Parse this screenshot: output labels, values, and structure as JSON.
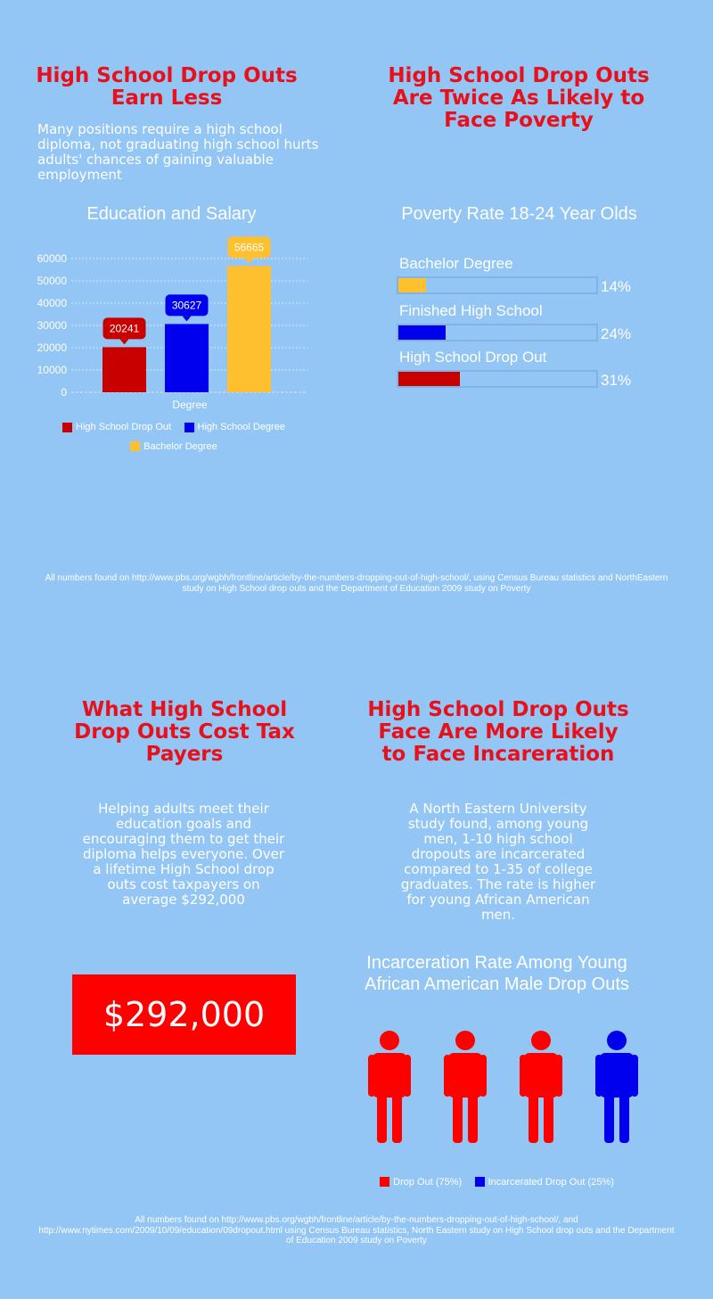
{
  "colors": {
    "background": "#93c6f4",
    "heading_red": "#e8101b",
    "dropout_red": "#c80000",
    "hs_blue": "#0000ee",
    "bachelor_yellow": "#ffc030",
    "money_red": "#ff0000"
  },
  "section1": {
    "left_title": "High School Drop Outs\nEarn Less",
    "left_text": "Many positions require a high school diploma, not graduating high school hurts adults' chances of gaining valuable employment",
    "right_title": "High School Drop Outs\nAre Twice As Likely to\nFace Poverty"
  },
  "salary_chart_title": "Education and Salary",
  "poverty_chart_title": "Poverty Rate 18-24 Year Olds",
  "source1": "All numbers found on http://www.pbs.org/wgbh/frontline/article/by-the-numbers-dropping-out-of-high-school/, using Census Bureau statistics and NorthEastern study on High School drop outs and the Department of Education 2009 study on Poverty",
  "section2": {
    "left_title": "What High School\nDrop Outs Cost Tax\nPayers",
    "left_text": "Helping adults meet their education goals and encouraging them to get their diploma helps everyone. Over a lifetime High School drop outs cost taxpayers on average $292,000",
    "money_box": "$292,000",
    "right_title": "High School Drop Outs\nFace Are More Likely\nto Face Incareration",
    "right_text": "A North Eastern University study found, among young men, 1-10 high school dropouts are incarcerated compared to 1-35 of college graduates. The rate is higher for young African American men."
  },
  "incarceration_chart_title": "Incarceration Rate Among Young\nAfrican American Male Drop Outs",
  "source2": "All numbers found on http://www.pbs.org/wgbh/frontline/article/by-the-numbers-dropping-out-of-high-school/,  and http://www.nytimes.com/2009/10/09/education/09dropout.html using Census Bureau statistics, North Eastern study on High School drop outs and the Department of Education 2009 study on Poverty",
  "chart_data": [
    {
      "type": "bar",
      "title": "Education and Salary",
      "xlabel": "Degree",
      "ylabel": "",
      "ylim": [
        0,
        60000
      ],
      "yticks": [
        "0",
        "10000",
        "20000",
        "30000",
        "40000",
        "50000",
        "60000"
      ],
      "grid": true,
      "legend_position": "bottom",
      "series": [
        {
          "name": "High School Drop Out",
          "values": [
            20241
          ],
          "color": "#c80000"
        },
        {
          "name": "High School Degree",
          "values": [
            30627
          ],
          "color": "#0000ee"
        },
        {
          "name": "Bachelor Degree",
          "values": [
            56665
          ],
          "color": "#ffc030"
        }
      ]
    },
    {
      "type": "bar",
      "orientation": "horizontal",
      "title": "Poverty Rate 18-24 Year Olds",
      "categories": [
        "Bachelor Degree",
        "Finished High School",
        "High School Drop Out"
      ],
      "values": [
        14,
        24,
        31
      ],
      "value_labels": [
        "14%",
        "24%",
        "31%"
      ],
      "colors": [
        "#ffc030",
        "#0000ee",
        "#c80000"
      ]
    },
    {
      "type": "pictogram",
      "title": "Incarceration Rate Among Young\nAfrican American Male Drop Outs",
      "series": [
        {
          "name": "Drop Out (75%)",
          "count": 3,
          "color": "#ff0000"
        },
        {
          "name": "Incarcerated Drop Out (25%)",
          "count": 1,
          "color": "#0000ee"
        }
      ],
      "legend_position": "bottom"
    }
  ]
}
